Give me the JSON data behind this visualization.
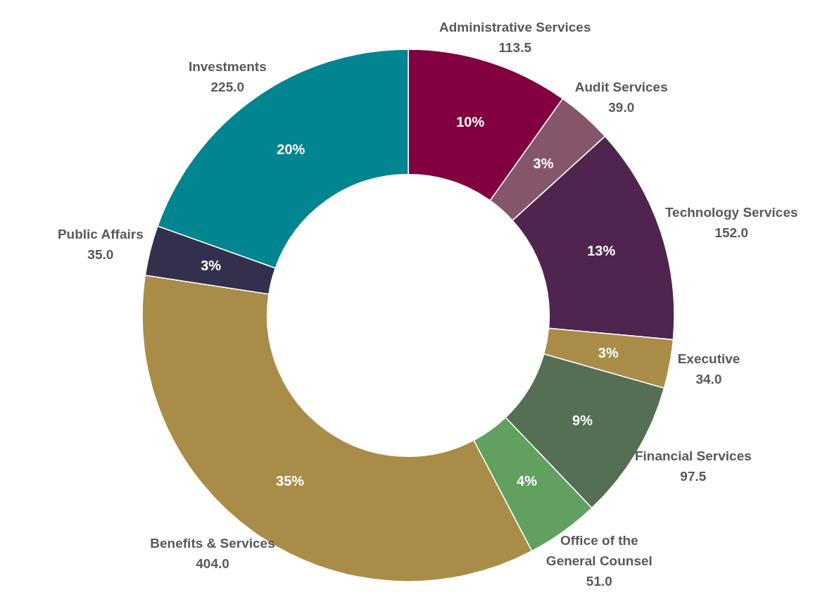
{
  "chart_data": {
    "type": "donut",
    "categories": [
      "Administrative Services",
      "Audit Services",
      "Technology Services",
      "Executive",
      "Financial Services",
      "Office of the General Counsel",
      "Benefits & Services",
      "Public Affairs",
      "Investments"
    ],
    "values": [
      113.5,
      39.0,
      152.0,
      34.0,
      97.5,
      51.0,
      404.0,
      35.0,
      225.0
    ],
    "colors": [
      "#820040",
      "#85566a",
      "#4f2550",
      "#a98c47",
      "#556f55",
      "#62a060",
      "#a98c47",
      "#33304d",
      "#008591"
    ],
    "value_labels": [
      "113.5",
      "39.0",
      "152.0",
      "34.0",
      "97.5",
      "51.0",
      "404.0",
      "35.0",
      "225.0"
    ],
    "annotations": [
      "10%",
      "3%",
      "13%",
      "3%",
      "9%",
      "4%",
      "35%",
      "3%",
      "20%"
    ]
  }
}
